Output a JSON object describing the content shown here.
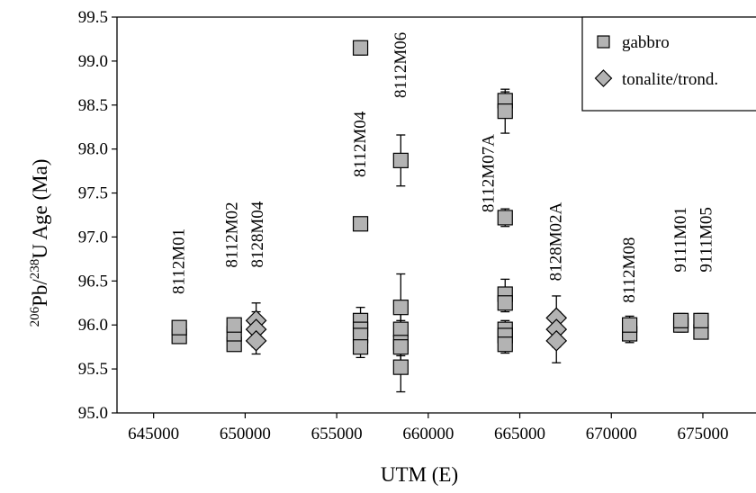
{
  "chart_data": {
    "type": "scatter",
    "xlabel": "UTM (E)",
    "ylabel": {
      "pre": "Pb/",
      "sup1": "206",
      "sup2": "238",
      "post": "U Age (Ma)"
    },
    "xlim": [
      643000,
      678000
    ],
    "ylim": [
      95.0,
      99.5
    ],
    "xticks": [
      "645000",
      "650000",
      "655000",
      "660000",
      "665000",
      "670000",
      "675000"
    ],
    "yticks": [
      "95.0",
      "95.5",
      "96.0",
      "96.5",
      "97.0",
      "97.5",
      "98.0",
      "98.5",
      "99.0",
      "99.5"
    ],
    "legend_position": "top-right",
    "grid": false,
    "colors": {
      "marker_fill": "#b3b3b3",
      "marker_stroke": "#000000"
    },
    "series": [
      {
        "name": "gabbro",
        "marker": "square",
        "points": [
          {
            "x": 646400,
            "y": 95.87,
            "err": 0.05
          },
          {
            "x": 646400,
            "y": 95.97,
            "err": 0.05
          },
          {
            "x": 649400,
            "y": 95.78,
            "err": 0.06
          },
          {
            "x": 649400,
            "y": 95.9,
            "err": 0.06
          },
          {
            "x": 649400,
            "y": 96.0,
            "err": 0.06
          },
          {
            "x": 656300,
            "y": 99.15,
            "err": 0.08
          },
          {
            "x": 656300,
            "y": 97.15,
            "err": 0.03
          },
          {
            "x": 656300,
            "y": 96.05,
            "err": 0.15
          },
          {
            "x": 656300,
            "y": 95.95,
            "err": 0.1
          },
          {
            "x": 656300,
            "y": 95.88,
            "err": 0.12
          },
          {
            "x": 656300,
            "y": 95.75,
            "err": 0.12
          },
          {
            "x": 658500,
            "y": 97.87,
            "err": 0.29
          },
          {
            "x": 658500,
            "y": 96.2,
            "err": 0.38
          },
          {
            "x": 658500,
            "y": 95.95,
            "err": 0.3
          },
          {
            "x": 658500,
            "y": 95.8,
            "err": 0.25
          },
          {
            "x": 658500,
            "y": 95.75,
            "err": 0.25
          },
          {
            "x": 658500,
            "y": 95.52,
            "err": 0.28
          },
          {
            "x": 664200,
            "y": 98.55,
            "err": 0.1
          },
          {
            "x": 664200,
            "y": 98.43,
            "err": 0.25
          },
          {
            "x": 664200,
            "y": 97.22,
            "err": 0.1
          },
          {
            "x": 664200,
            "y": 96.35,
            "err": 0.17
          },
          {
            "x": 664200,
            "y": 96.25,
            "err": 0.1
          },
          {
            "x": 664200,
            "y": 95.95,
            "err": 0.1
          },
          {
            "x": 664200,
            "y": 95.88,
            "err": 0.1
          },
          {
            "x": 664200,
            "y": 95.78,
            "err": 0.1
          },
          {
            "x": 671000,
            "y": 95.9,
            "err": 0.1
          },
          {
            "x": 671000,
            "y": 96.0,
            "err": 0.1
          },
          {
            "x": 673800,
            "y": 96.0,
            "err": 0.08
          },
          {
            "x": 673800,
            "y": 96.05,
            "err": 0.08
          },
          {
            "x": 674900,
            "y": 95.92,
            "err": 0.08
          },
          {
            "x": 674900,
            "y": 96.05,
            "err": 0.08
          }
        ]
      },
      {
        "name": "tonalite/trond.",
        "marker": "diamond",
        "points": [
          {
            "x": 650600,
            "y": 96.05,
            "err": 0.2
          },
          {
            "x": 650600,
            "y": 95.95,
            "err": 0.2
          },
          {
            "x": 650600,
            "y": 95.82,
            "err": 0.15
          },
          {
            "x": 667000,
            "y": 96.08,
            "err": 0.25
          },
          {
            "x": 667000,
            "y": 95.95,
            "err": 0.2
          },
          {
            "x": 667000,
            "y": 95.82,
            "err": 0.25
          }
        ]
      }
    ],
    "annotations": [
      {
        "text": "8112M01",
        "x": 646400,
        "y": 96.35
      },
      {
        "text": "8112M02",
        "x": 649300,
        "y": 96.65
      },
      {
        "text": "8128M04",
        "x": 650700,
        "y": 96.65
      },
      {
        "text": "8112M04",
        "x": 656300,
        "y": 97.68
      },
      {
        "text": "8112M06",
        "x": 658500,
        "y": 98.58
      },
      {
        "text": "8112M07A",
        "x": 663300,
        "y": 97.28
      },
      {
        "text": "8128M02A",
        "x": 667000,
        "y": 96.5
      },
      {
        "text": "8112M08",
        "x": 671000,
        "y": 96.25
      },
      {
        "text": "9111M01",
        "x": 673800,
        "y": 96.6
      },
      {
        "text": "9111M05",
        "x": 675200,
        "y": 96.6
      }
    ]
  }
}
